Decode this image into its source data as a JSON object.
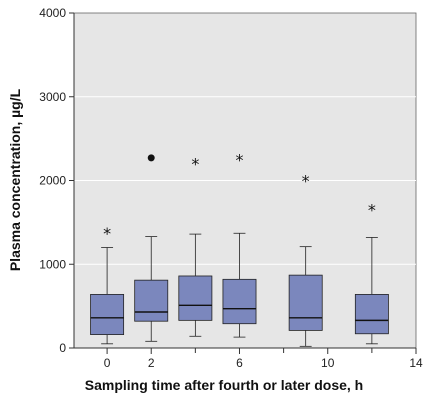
{
  "chart_data": {
    "type": "boxplot",
    "xlabel": "Sampling time after fourth or later dose, h",
    "ylabel": "Plasma concentration, µg/L",
    "xlim": [
      -1.5,
      14
    ],
    "ylim": [
      0,
      4000
    ],
    "x_ticks": [
      0,
      2,
      6,
      10,
      14
    ],
    "x_minor_ticks": [
      4,
      8,
      12
    ],
    "y_ticks": [
      0,
      1000,
      2000,
      3000,
      4000
    ],
    "grid": "horizontal",
    "box_half_width": 0.75,
    "colors": {
      "plot_background": "#e6e6e6",
      "box_fill": "#7b87bd",
      "box_stroke": "#222222",
      "gridline": "#ffffff"
    },
    "boxes": [
      {
        "x": 0,
        "whisker_low": 50,
        "q1": 160,
        "median": 360,
        "q3": 640,
        "whisker_high": 1200,
        "outliers": [
          {
            "y": 1420,
            "marker": "*"
          }
        ]
      },
      {
        "x": 2,
        "whisker_low": 80,
        "q1": 320,
        "median": 430,
        "q3": 810,
        "whisker_high": 1330,
        "outliers": [
          {
            "y": 2270,
            "marker": "●"
          }
        ]
      },
      {
        "x": 4,
        "whisker_low": 140,
        "q1": 330,
        "median": 510,
        "q3": 860,
        "whisker_high": 1360,
        "outliers": [
          {
            "y": 2250,
            "marker": "*"
          }
        ]
      },
      {
        "x": 6,
        "whisker_low": 130,
        "q1": 290,
        "median": 470,
        "q3": 820,
        "whisker_high": 1370,
        "outliers": [
          {
            "y": 2300,
            "marker": "*"
          }
        ]
      },
      {
        "x": 9,
        "whisker_low": 20,
        "q1": 210,
        "median": 360,
        "q3": 870,
        "whisker_high": 1210,
        "outliers": [
          {
            "y": 2050,
            "marker": "*"
          }
        ]
      },
      {
        "x": 12,
        "whisker_low": 50,
        "q1": 170,
        "median": 330,
        "q3": 640,
        "whisker_high": 1320,
        "outliers": [
          {
            "y": 1700,
            "marker": "*"
          }
        ]
      }
    ]
  }
}
